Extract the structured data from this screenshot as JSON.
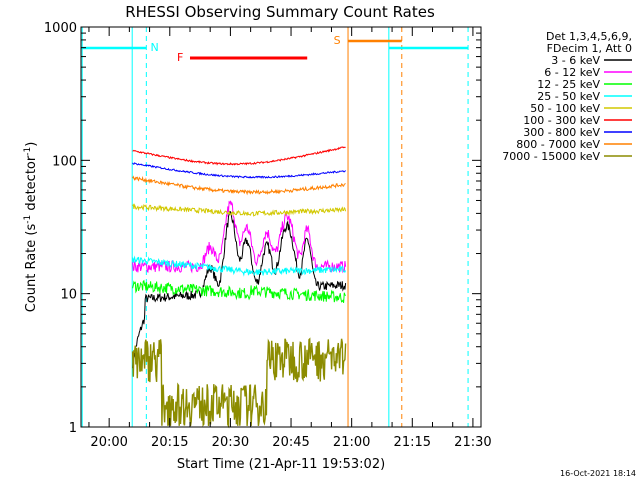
{
  "chart_data": {
    "type": "line",
    "title": "RHESSI Observing Summary Count Rates",
    "xlabel": "Start Time (21-Apr-11 19:53:02)",
    "ylabel_main": "Count Rate (s",
    "ylabel_sup1": "-1",
    "ylabel_mid": " detector",
    "ylabel_sup2": "-1",
    "ylabel_end": ")",
    "yscale": "log",
    "ylim": [
      1,
      1000
    ],
    "xlim": [
      "19:53",
      "21:32"
    ],
    "x_ticks": [
      "20:00",
      "20:15",
      "20:30",
      "20:45",
      "21:00",
      "21:15",
      "21:30"
    ],
    "y_ticks": [
      "1",
      "10",
      "100",
      "1000"
    ],
    "legend": {
      "position": "right",
      "header": [
        "Det 1,3,4,5,6,9,",
        "FDecim 1, Att 0"
      ]
    },
    "series": [
      {
        "name": "3 - 6 keV",
        "color": "#000000"
      },
      {
        "name": "6 - 12 keV",
        "color": "#ff00ff"
      },
      {
        "name": "12 - 25 keV",
        "color": "#00ff00"
      },
      {
        "name": "25 - 50 keV",
        "color": "#00ffff"
      },
      {
        "name": "50 - 100 keV",
        "color": "#d2c800"
      },
      {
        "name": "100 - 300 keV",
        "color": "#ff0000"
      },
      {
        "name": "300 - 800 keV",
        "color": "#0000ff"
      },
      {
        "name": "800 - 7000 keV",
        "color": "#ff8000"
      },
      {
        "name": "7000 - 15000 keV",
        "color": "#8c8c00"
      }
    ],
    "markers": [
      {
        "label": "N",
        "color": "#00ffff"
      },
      {
        "label": "F",
        "color": "#ff0000"
      },
      {
        "label": "S",
        "color": "#ff8000"
      }
    ],
    "footer": "16-Oct-2021 18:14"
  },
  "colors": {
    "night": "#00ffff",
    "flare": "#ff0000",
    "saa": "#ff8000"
  }
}
